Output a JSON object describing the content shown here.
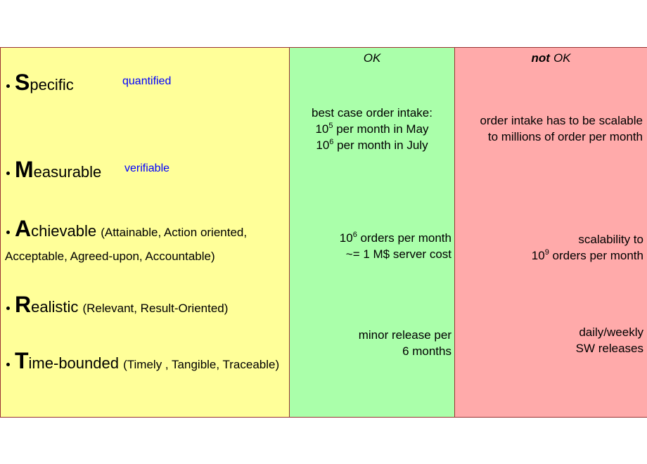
{
  "left": {
    "items": [
      {
        "letter": "S",
        "rest": "pecific",
        "note": "quantified"
      },
      {
        "letter": "M",
        "rest": "easurable",
        "note": "verifiable"
      },
      {
        "letter": "A",
        "rest": "chievable",
        "detail": "(Attainable, Action oriented, Acceptable, Agreed-upon, Accountable)"
      },
      {
        "letter": "R",
        "rest": "ealistic",
        "detail": "(Relevant, Result-Oriented)"
      },
      {
        "letter": "T",
        "rest": "ime-bounded",
        "detail": "(Timely , Tangible, Traceable)"
      }
    ]
  },
  "ok": {
    "header": "OK",
    "cells": [
      {
        "lines": [
          "best case order intake:",
          {
            "base": "10",
            "sup": "5",
            "text": " per month in May"
          },
          {
            "base": "10",
            "sup": "6",
            "text": " per month in July"
          }
        ]
      },
      {
        "lines": [
          {
            "base": "10",
            "sup": "6",
            "text": " orders per month"
          },
          "~= 1 M$ server cost"
        ]
      },
      {
        "lines": [
          "minor release per",
          "6 months"
        ]
      }
    ]
  },
  "not_ok": {
    "header_emphasis": "not",
    "header": "OK",
    "cells": [
      {
        "lines": [
          "order intake has to be scalable",
          "to millions of order per month"
        ]
      },
      {
        "lines": [
          "scalability to",
          {
            "base": "10",
            "sup": "9",
            "text": " orders per month"
          }
        ]
      },
      {
        "lines": [
          "daily/weekly",
          "SW releases"
        ]
      }
    ]
  }
}
